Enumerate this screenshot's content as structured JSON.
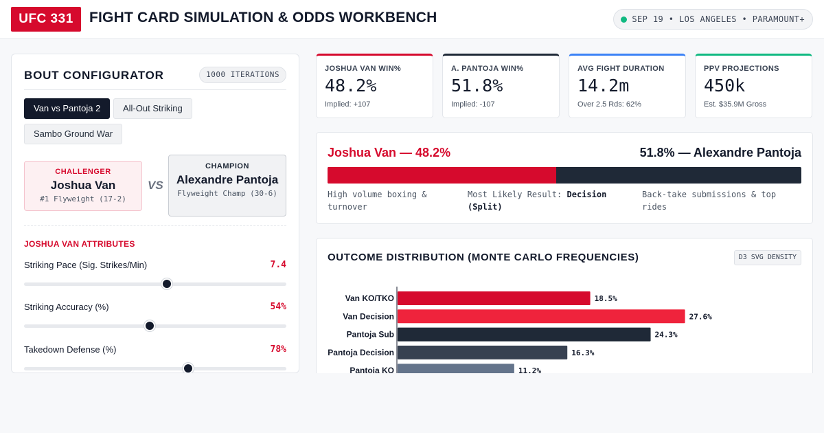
{
  "header": {
    "brand": "UFC 331",
    "title": "FIGHT CARD SIMULATION & ODDS WORKBENCH",
    "event": "SEP 19 • LOS ANGELES • PARAMOUNT+"
  },
  "configurator": {
    "title": "BOUT CONFIGURATOR",
    "iterations": "1000 ITERATIONS",
    "presets": [
      "Van vs Pantoja 2",
      "All-Out Striking",
      "Sambo Ground War"
    ],
    "active_preset": 0,
    "challenger": {
      "role": "CHALLENGER",
      "name": "Joshua Van",
      "rank": "#1 Flyweight (17-2)"
    },
    "vs": "VS",
    "champion": {
      "role": "CHAMPION",
      "name": "Alexandre Pantoja",
      "rank": "Flyweight Champ (30-6)"
    },
    "attributes_heading": "JOSHUA VAN ATTRIBUTES",
    "attributes": [
      {
        "label": "Striking Pace (Sig. Strikes/Min)",
        "value": "7.4",
        "fraction": 0.545
      },
      {
        "label": "Striking Accuracy (%)",
        "value": "54%",
        "fraction": 0.48
      },
      {
        "label": "Takedown Defense (%)",
        "value": "78%",
        "fraction": 0.625
      }
    ]
  },
  "stats": [
    {
      "label": "JOSHUA VAN WIN%",
      "value": "48.2%",
      "sub": "Implied: +107",
      "color": "#d60a2d"
    },
    {
      "label": "A. PANTOJA WIN%",
      "value": "51.8%",
      "sub": "Implied: -107",
      "color": "#1f2937"
    },
    {
      "label": "AVG FIGHT DURATION",
      "value": "14.2m",
      "sub": "Over 2.5 Rds: 62%",
      "color": "#3b82f6"
    },
    {
      "label": "PPV PROJECTIONS",
      "value": "450k",
      "sub": "Est. $35.9M Gross",
      "color": "#10b981"
    }
  ],
  "winbar": {
    "left_label": "Joshua Van — 48.2%",
    "right_label": "51.8% — Alexandre Pantoja",
    "van_share": 48.2,
    "left_note": "High volume boxing & turnover",
    "center_prefix": "Most Likely Result:",
    "center_value": "Decision (Split)",
    "right_note": "Back-take submissions & top rides"
  },
  "distribution": {
    "title": "OUTCOME DISTRIBUTION (MONTE CARLO FREQUENCIES)",
    "tag": "D3 SVG DENSITY"
  },
  "chart_data": {
    "type": "bar",
    "orientation": "horizontal",
    "categories": [
      "Van KO/TKO",
      "Van Decision",
      "Pantoja Sub",
      "Pantoja Decision",
      "Pantoja KO"
    ],
    "values": [
      18.5,
      27.6,
      24.3,
      16.3,
      11.2
    ],
    "labels": [
      "18.5%",
      "27.6%",
      "24.3%",
      "16.3%",
      "11.2%"
    ],
    "colors": [
      "#d60a2d",
      "#ef233c",
      "#1f2937",
      "#374151",
      "#64748b"
    ],
    "xlim": [
      0,
      30
    ]
  }
}
